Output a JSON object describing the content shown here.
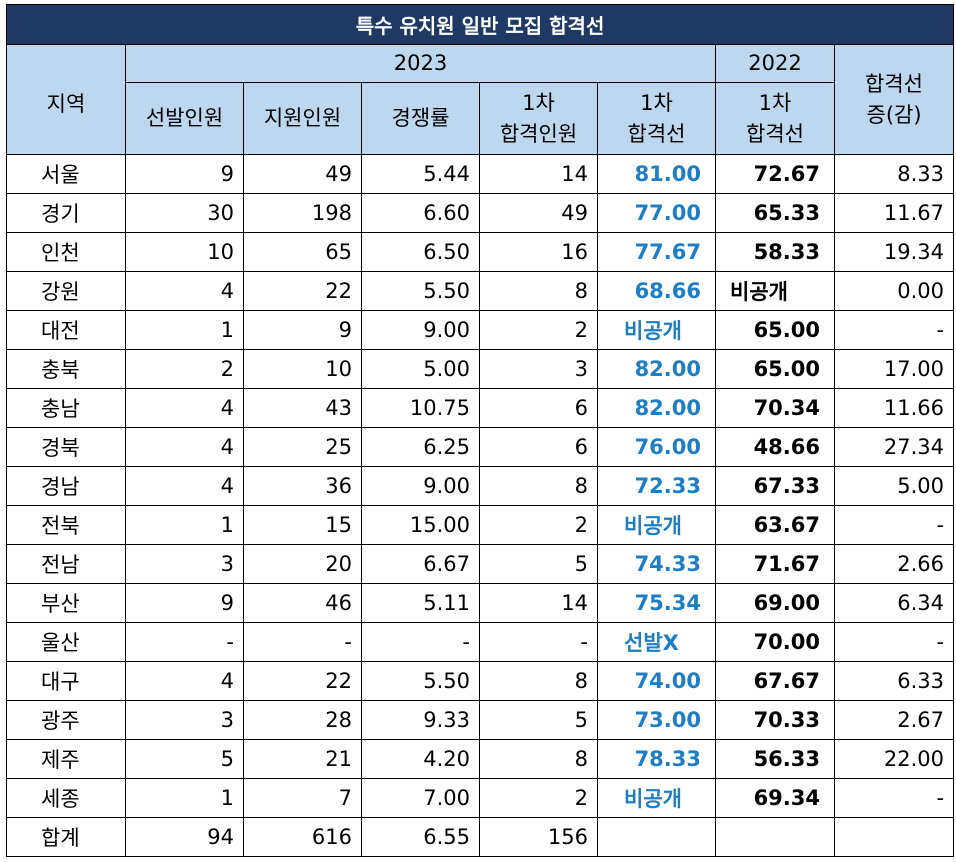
{
  "title": "특수 유치원 일반 모집 합격선",
  "headers": {
    "region": "지역",
    "year2023": "2023",
    "year2022": "2022",
    "change_l1": "합격선",
    "change_l2": "증(감)",
    "selected": "선발인원",
    "applicants": "지원인원",
    "ratio": "경쟁률",
    "pass_count_l1": "1차",
    "pass_count_l2": "합격인원",
    "cutoff_l1": "1차",
    "cutoff_l2": "합격선",
    "cutoff22_l1": "1차",
    "cutoff22_l2": "합격선"
  },
  "rows": [
    {
      "region": "서울",
      "selected": "9",
      "applicants": "49",
      "ratio": "5.44",
      "pass_count": "14",
      "cutoff_2023": "81.00",
      "cutoff_2022": "72.67",
      "change": "8.33"
    },
    {
      "region": "경기",
      "selected": "30",
      "applicants": "198",
      "ratio": "6.60",
      "pass_count": "49",
      "cutoff_2023": "77.00",
      "cutoff_2022": "65.33",
      "change": "11.67"
    },
    {
      "region": "인천",
      "selected": "10",
      "applicants": "65",
      "ratio": "6.50",
      "pass_count": "16",
      "cutoff_2023": "77.67",
      "cutoff_2022": "58.33",
      "change": "19.34"
    },
    {
      "region": "강원",
      "selected": "4",
      "applicants": "22",
      "ratio": "5.50",
      "pass_count": "8",
      "cutoff_2023": "68.66",
      "cutoff_2022": "비공개",
      "change": "0.00"
    },
    {
      "region": "대전",
      "selected": "1",
      "applicants": "9",
      "ratio": "9.00",
      "pass_count": "2",
      "cutoff_2023": "비공개",
      "cutoff_2022": "65.00",
      "change": "-"
    },
    {
      "region": "충북",
      "selected": "2",
      "applicants": "10",
      "ratio": "5.00",
      "pass_count": "3",
      "cutoff_2023": "82.00",
      "cutoff_2022": "65.00",
      "change": "17.00"
    },
    {
      "region": "충남",
      "selected": "4",
      "applicants": "43",
      "ratio": "10.75",
      "pass_count": "6",
      "cutoff_2023": "82.00",
      "cutoff_2022": "70.34",
      "change": "11.66"
    },
    {
      "region": "경북",
      "selected": "4",
      "applicants": "25",
      "ratio": "6.25",
      "pass_count": "6",
      "cutoff_2023": "76.00",
      "cutoff_2022": "48.66",
      "change": "27.34"
    },
    {
      "region": "경남",
      "selected": "4",
      "applicants": "36",
      "ratio": "9.00",
      "pass_count": "8",
      "cutoff_2023": "72.33",
      "cutoff_2022": "67.33",
      "change": "5.00"
    },
    {
      "region": "전북",
      "selected": "1",
      "applicants": "15",
      "ratio": "15.00",
      "pass_count": "2",
      "cutoff_2023": "비공개",
      "cutoff_2022": "63.67",
      "change": "-"
    },
    {
      "region": "전남",
      "selected": "3",
      "applicants": "20",
      "ratio": "6.67",
      "pass_count": "5",
      "cutoff_2023": "74.33",
      "cutoff_2022": "71.67",
      "change": "2.66"
    },
    {
      "region": "부산",
      "selected": "9",
      "applicants": "46",
      "ratio": "5.11",
      "pass_count": "14",
      "cutoff_2023": "75.34",
      "cutoff_2022": "69.00",
      "change": "6.34"
    },
    {
      "region": "울산",
      "selected": "-",
      "applicants": "-",
      "ratio": "-",
      "pass_count": "-",
      "cutoff_2023": "선발X",
      "cutoff_2022": "70.00",
      "change": "-"
    },
    {
      "region": "대구",
      "selected": "4",
      "applicants": "22",
      "ratio": "5.50",
      "pass_count": "8",
      "cutoff_2023": "74.00",
      "cutoff_2022": "67.67",
      "change": "6.33"
    },
    {
      "region": "광주",
      "selected": "3",
      "applicants": "28",
      "ratio": "9.33",
      "pass_count": "5",
      "cutoff_2023": "73.00",
      "cutoff_2022": "70.33",
      "change": "2.67"
    },
    {
      "region": "제주",
      "selected": "5",
      "applicants": "21",
      "ratio": "4.20",
      "pass_count": "8",
      "cutoff_2023": "78.33",
      "cutoff_2022": "56.33",
      "change": "22.00"
    },
    {
      "region": "세종",
      "selected": "1",
      "applicants": "7",
      "ratio": "7.00",
      "pass_count": "2",
      "cutoff_2023": "비공개",
      "cutoff_2022": "69.34",
      "change": "-"
    }
  ],
  "total": {
    "region": "합계",
    "selected": "94",
    "applicants": "616",
    "ratio": "6.55",
    "pass_count": "156",
    "cutoff_2023": "",
    "cutoff_2022": "",
    "change": ""
  },
  "colors": {
    "title_bg": "#1f3864",
    "header_bg": "#bdd7ee",
    "cutoff_text": "#1f7ec2"
  }
}
